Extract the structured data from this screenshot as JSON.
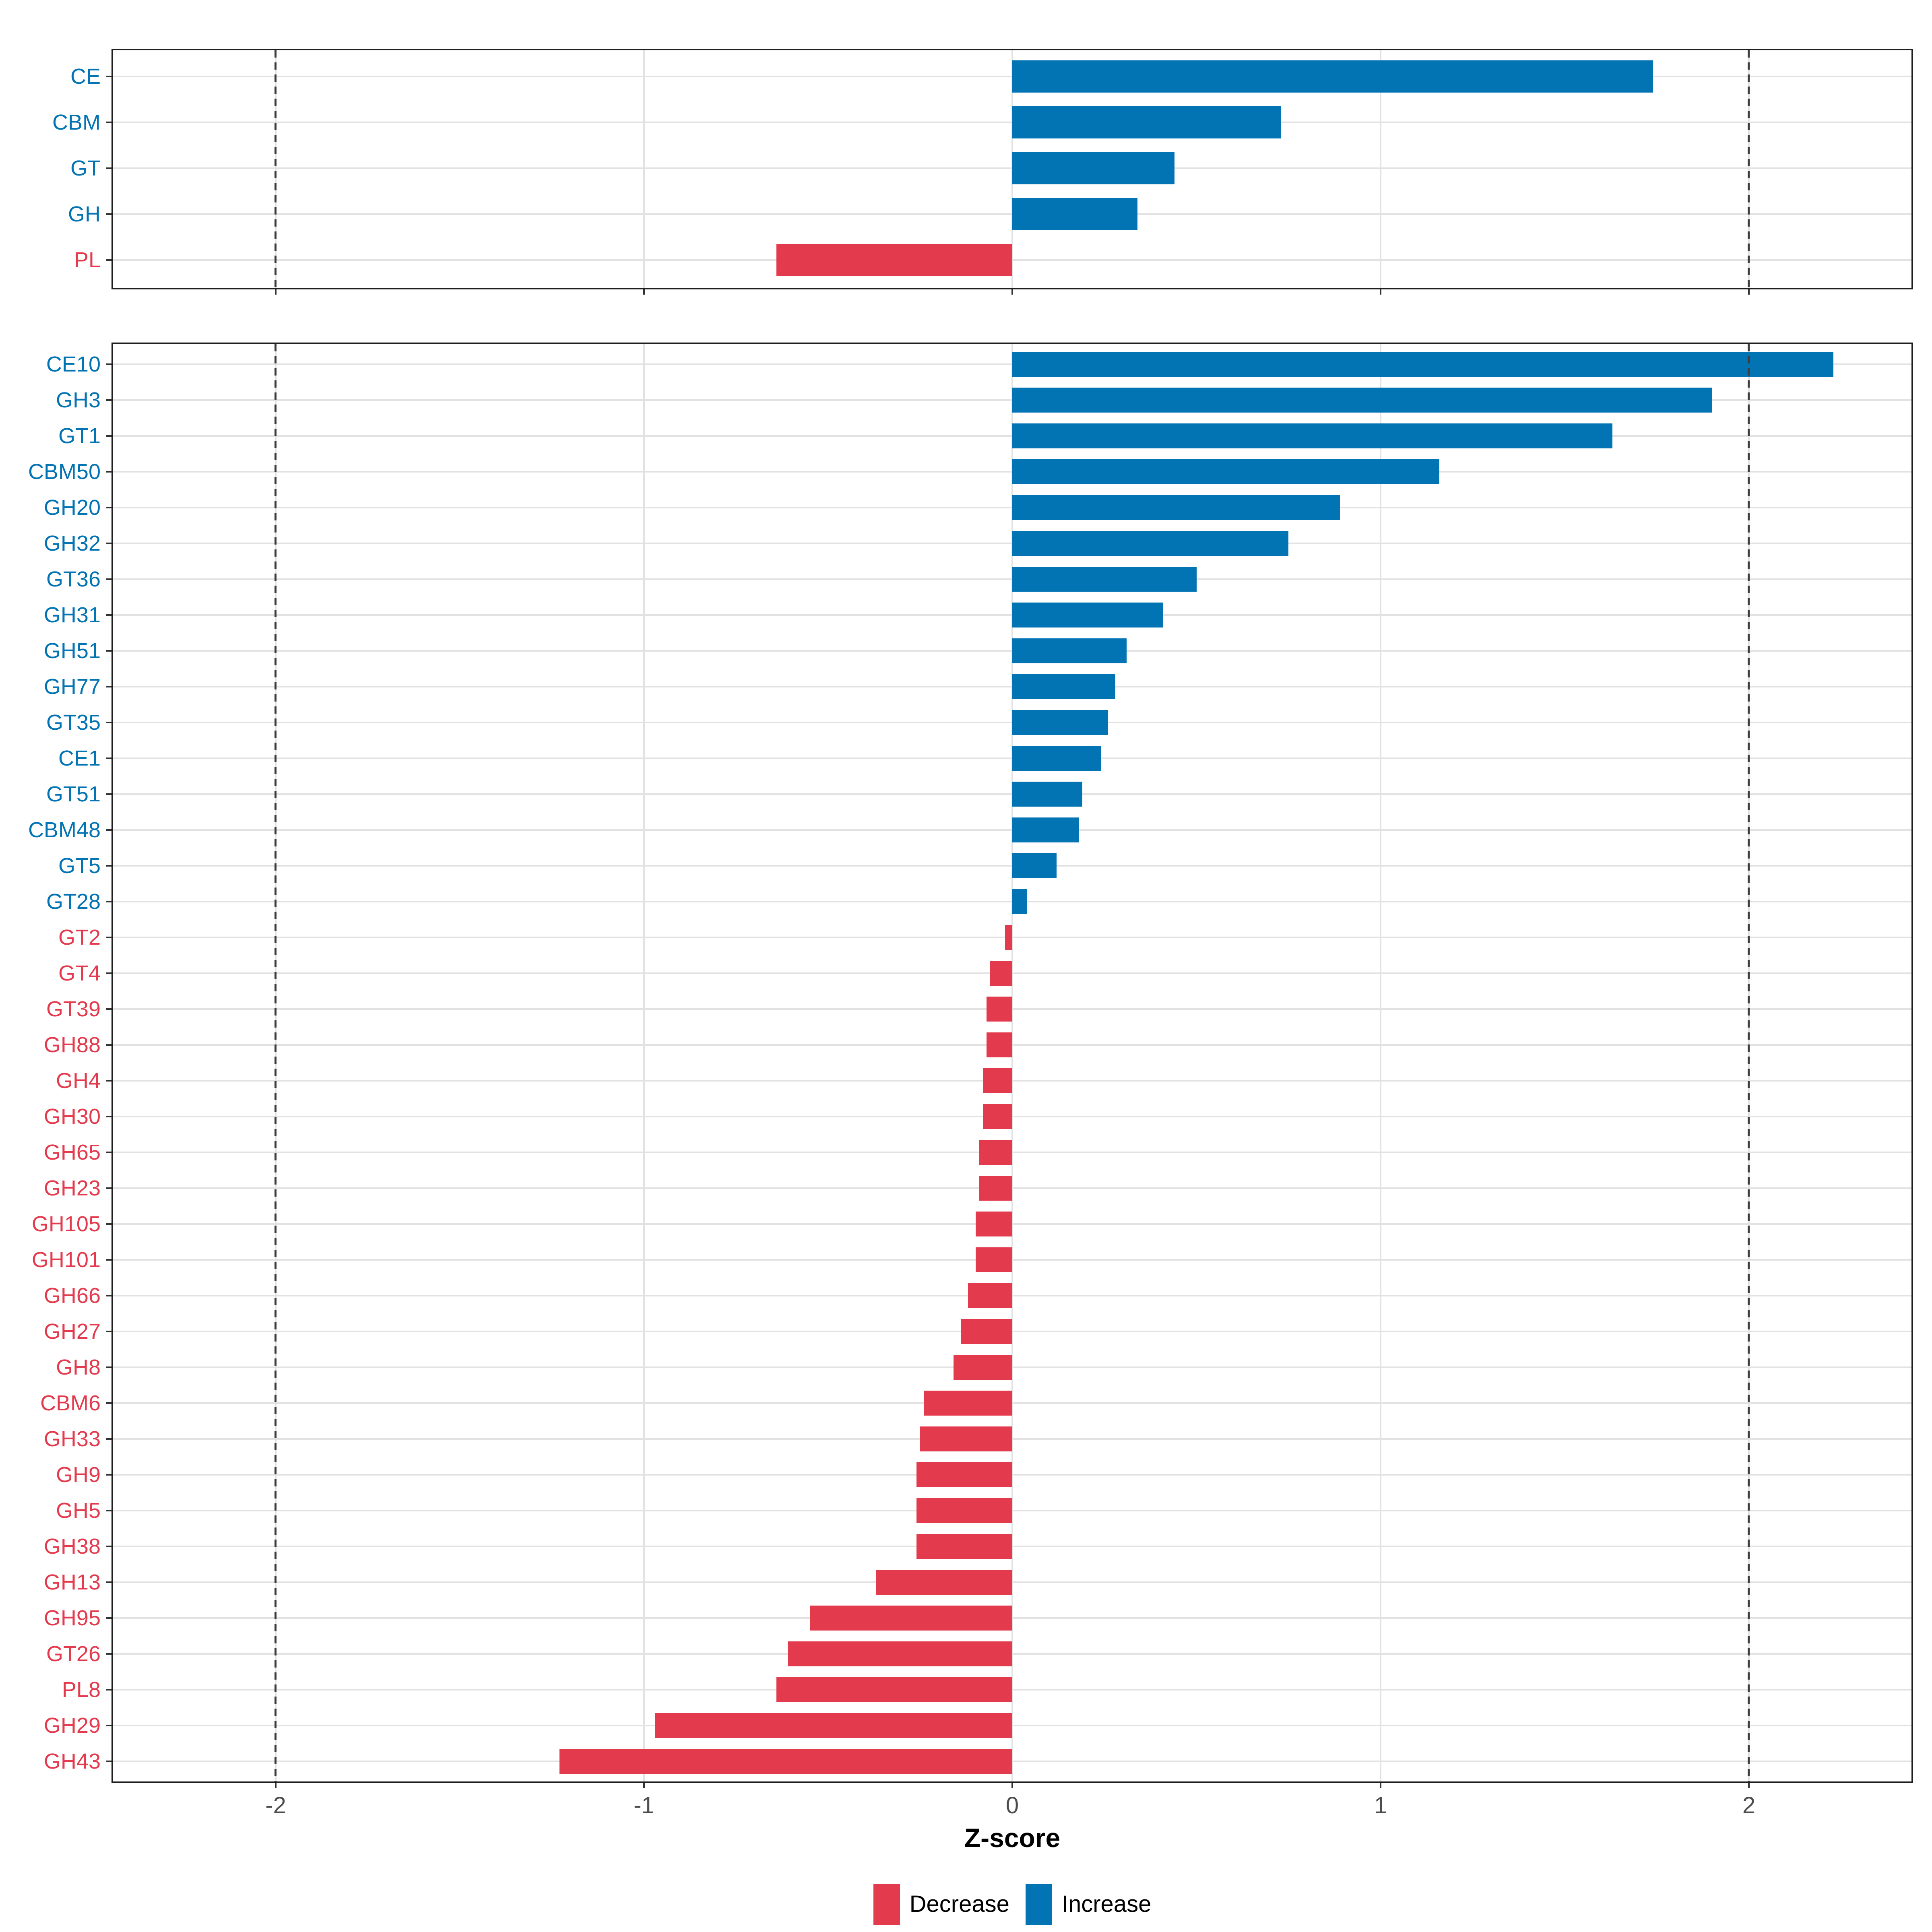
{
  "axis": {
    "label": "Z-score",
    "tick_labels": [
      "-2",
      "-1",
      "0",
      "1",
      "2"
    ],
    "tick_values": [
      -2,
      -1,
      0,
      1,
      2
    ]
  },
  "legend": {
    "items": [
      {
        "label": "Decrease",
        "color": "#e33b4d"
      },
      {
        "label": "Increase",
        "color": "#0273b3"
      }
    ]
  },
  "colors": {
    "increase": "#0273b3",
    "decrease": "#e33b4d",
    "grid": "#e2e2e2",
    "axis_text": "#4d4d4d",
    "border": "#1f1f1f",
    "dashed_line": "#3d3d3d",
    "tick": "#333333"
  },
  "chart_data": [
    {
      "type": "bar",
      "orientation": "horizontal",
      "panel": "cazyme-class",
      "title": "",
      "xlabel": "Z-score",
      "ylabel": "",
      "xlim": [
        -2.45,
        2.45
      ],
      "x_ticks": [
        -2,
        -1,
        0,
        1,
        2
      ],
      "dashed_vlines": [
        -2,
        2
      ],
      "grid": true,
      "legend_position": "bottom",
      "categories": [
        "CE",
        "CBM",
        "GT",
        "GH",
        "PL"
      ],
      "values": [
        1.74,
        0.73,
        0.44,
        0.34,
        -0.64
      ]
    },
    {
      "type": "bar",
      "orientation": "horizontal",
      "panel": "cazyme-family",
      "title": "",
      "xlabel": "Z-score",
      "ylabel": "",
      "xlim": [
        -2.45,
        2.45
      ],
      "x_ticks": [
        -2,
        -1,
        0,
        1,
        2
      ],
      "dashed_vlines": [
        -2,
        2
      ],
      "grid": true,
      "legend_position": "bottom",
      "categories": [
        "CE10",
        "GH3",
        "GT1",
        "CBM50",
        "GH20",
        "GH32",
        "GT36",
        "GH31",
        "GH51",
        "GH77",
        "GT35",
        "CE1",
        "GT51",
        "CBM48",
        "GT5",
        "GT28",
        "GT2",
        "GT4",
        "GT39",
        "GH88",
        "GH4",
        "GH30",
        "GH65",
        "GH23",
        "GH105",
        "GH101",
        "GH66",
        "GH27",
        "GH8",
        "CBM6",
        "GH33",
        "GH9",
        "GH5",
        "GH38",
        "GH13",
        "GH95",
        "GT26",
        "PL8",
        "GH29",
        "GH43"
      ],
      "values": [
        2.23,
        1.9,
        1.63,
        1.16,
        0.89,
        0.75,
        0.5,
        0.41,
        0.31,
        0.28,
        0.26,
        0.24,
        0.19,
        0.18,
        0.12,
        0.04,
        -0.02,
        -0.06,
        -0.07,
        -0.07,
        -0.08,
        -0.08,
        -0.09,
        -0.09,
        -0.1,
        -0.1,
        -0.12,
        -0.14,
        -0.16,
        -0.24,
        -0.25,
        -0.26,
        -0.26,
        -0.26,
        -0.37,
        -0.55,
        -0.61,
        -0.64,
        -0.97,
        -1.23
      ]
    }
  ]
}
